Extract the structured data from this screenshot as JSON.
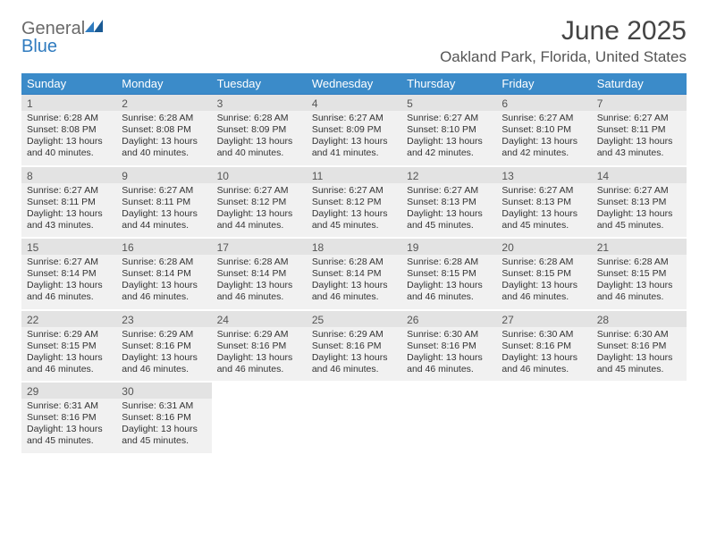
{
  "logo": {
    "text_general": "General",
    "text_blue": "Blue"
  },
  "header": {
    "title": "June 2025",
    "location": "Oakland Park, Florida, United States"
  },
  "colors": {
    "header_bg": "#3b8bc9",
    "header_text": "#ffffff",
    "row_border": "#2f7bbf",
    "cell_bg": "#f1f1f1",
    "daynum_bg": "#e3e3e3",
    "page_bg": "#ffffff",
    "logo_gray": "#6a6a6a",
    "logo_blue": "#2f7bbf"
  },
  "weekdays": [
    "Sunday",
    "Monday",
    "Tuesday",
    "Wednesday",
    "Thursday",
    "Friday",
    "Saturday"
  ],
  "days": [
    {
      "n": "1",
      "sunrise": "Sunrise: 6:28 AM",
      "sunset": "Sunset: 8:08 PM",
      "daylight": "Daylight: 13 hours and 40 minutes."
    },
    {
      "n": "2",
      "sunrise": "Sunrise: 6:28 AM",
      "sunset": "Sunset: 8:08 PM",
      "daylight": "Daylight: 13 hours and 40 minutes."
    },
    {
      "n": "3",
      "sunrise": "Sunrise: 6:28 AM",
      "sunset": "Sunset: 8:09 PM",
      "daylight": "Daylight: 13 hours and 40 minutes."
    },
    {
      "n": "4",
      "sunrise": "Sunrise: 6:27 AM",
      "sunset": "Sunset: 8:09 PM",
      "daylight": "Daylight: 13 hours and 41 minutes."
    },
    {
      "n": "5",
      "sunrise": "Sunrise: 6:27 AM",
      "sunset": "Sunset: 8:10 PM",
      "daylight": "Daylight: 13 hours and 42 minutes."
    },
    {
      "n": "6",
      "sunrise": "Sunrise: 6:27 AM",
      "sunset": "Sunset: 8:10 PM",
      "daylight": "Daylight: 13 hours and 42 minutes."
    },
    {
      "n": "7",
      "sunrise": "Sunrise: 6:27 AM",
      "sunset": "Sunset: 8:11 PM",
      "daylight": "Daylight: 13 hours and 43 minutes."
    },
    {
      "n": "8",
      "sunrise": "Sunrise: 6:27 AM",
      "sunset": "Sunset: 8:11 PM",
      "daylight": "Daylight: 13 hours and 43 minutes."
    },
    {
      "n": "9",
      "sunrise": "Sunrise: 6:27 AM",
      "sunset": "Sunset: 8:11 PM",
      "daylight": "Daylight: 13 hours and 44 minutes."
    },
    {
      "n": "10",
      "sunrise": "Sunrise: 6:27 AM",
      "sunset": "Sunset: 8:12 PM",
      "daylight": "Daylight: 13 hours and 44 minutes."
    },
    {
      "n": "11",
      "sunrise": "Sunrise: 6:27 AM",
      "sunset": "Sunset: 8:12 PM",
      "daylight": "Daylight: 13 hours and 45 minutes."
    },
    {
      "n": "12",
      "sunrise": "Sunrise: 6:27 AM",
      "sunset": "Sunset: 8:13 PM",
      "daylight": "Daylight: 13 hours and 45 minutes."
    },
    {
      "n": "13",
      "sunrise": "Sunrise: 6:27 AM",
      "sunset": "Sunset: 8:13 PM",
      "daylight": "Daylight: 13 hours and 45 minutes."
    },
    {
      "n": "14",
      "sunrise": "Sunrise: 6:27 AM",
      "sunset": "Sunset: 8:13 PM",
      "daylight": "Daylight: 13 hours and 45 minutes."
    },
    {
      "n": "15",
      "sunrise": "Sunrise: 6:27 AM",
      "sunset": "Sunset: 8:14 PM",
      "daylight": "Daylight: 13 hours and 46 minutes."
    },
    {
      "n": "16",
      "sunrise": "Sunrise: 6:28 AM",
      "sunset": "Sunset: 8:14 PM",
      "daylight": "Daylight: 13 hours and 46 minutes."
    },
    {
      "n": "17",
      "sunrise": "Sunrise: 6:28 AM",
      "sunset": "Sunset: 8:14 PM",
      "daylight": "Daylight: 13 hours and 46 minutes."
    },
    {
      "n": "18",
      "sunrise": "Sunrise: 6:28 AM",
      "sunset": "Sunset: 8:14 PM",
      "daylight": "Daylight: 13 hours and 46 minutes."
    },
    {
      "n": "19",
      "sunrise": "Sunrise: 6:28 AM",
      "sunset": "Sunset: 8:15 PM",
      "daylight": "Daylight: 13 hours and 46 minutes."
    },
    {
      "n": "20",
      "sunrise": "Sunrise: 6:28 AM",
      "sunset": "Sunset: 8:15 PM",
      "daylight": "Daylight: 13 hours and 46 minutes."
    },
    {
      "n": "21",
      "sunrise": "Sunrise: 6:28 AM",
      "sunset": "Sunset: 8:15 PM",
      "daylight": "Daylight: 13 hours and 46 minutes."
    },
    {
      "n": "22",
      "sunrise": "Sunrise: 6:29 AM",
      "sunset": "Sunset: 8:15 PM",
      "daylight": "Daylight: 13 hours and 46 minutes."
    },
    {
      "n": "23",
      "sunrise": "Sunrise: 6:29 AM",
      "sunset": "Sunset: 8:16 PM",
      "daylight": "Daylight: 13 hours and 46 minutes."
    },
    {
      "n": "24",
      "sunrise": "Sunrise: 6:29 AM",
      "sunset": "Sunset: 8:16 PM",
      "daylight": "Daylight: 13 hours and 46 minutes."
    },
    {
      "n": "25",
      "sunrise": "Sunrise: 6:29 AM",
      "sunset": "Sunset: 8:16 PM",
      "daylight": "Daylight: 13 hours and 46 minutes."
    },
    {
      "n": "26",
      "sunrise": "Sunrise: 6:30 AM",
      "sunset": "Sunset: 8:16 PM",
      "daylight": "Daylight: 13 hours and 46 minutes."
    },
    {
      "n": "27",
      "sunrise": "Sunrise: 6:30 AM",
      "sunset": "Sunset: 8:16 PM",
      "daylight": "Daylight: 13 hours and 46 minutes."
    },
    {
      "n": "28",
      "sunrise": "Sunrise: 6:30 AM",
      "sunset": "Sunset: 8:16 PM",
      "daylight": "Daylight: 13 hours and 45 minutes."
    },
    {
      "n": "29",
      "sunrise": "Sunrise: 6:31 AM",
      "sunset": "Sunset: 8:16 PM",
      "daylight": "Daylight: 13 hours and 45 minutes."
    },
    {
      "n": "30",
      "sunrise": "Sunrise: 6:31 AM",
      "sunset": "Sunset: 8:16 PM",
      "daylight": "Daylight: 13 hours and 45 minutes."
    }
  ]
}
